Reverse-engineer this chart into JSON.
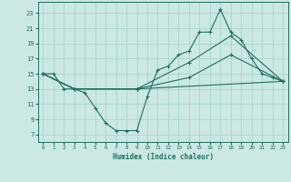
{
  "xlabel": "Humidex (Indice chaleur)",
  "ylabel": "",
  "bg_color": "#cce8e4",
  "line_color": "#1e6e60",
  "grid_color": "#a8d4cc",
  "xlim": [
    -0.5,
    23.5
  ],
  "ylim": [
    6,
    24.5
  ],
  "xticks": [
    0,
    1,
    2,
    3,
    4,
    5,
    6,
    7,
    8,
    9,
    10,
    11,
    12,
    13,
    14,
    15,
    16,
    17,
    18,
    19,
    20,
    21,
    22,
    23
  ],
  "yticks": [
    7,
    9,
    11,
    13,
    15,
    17,
    19,
    21,
    23
  ],
  "line1_x": [
    0,
    1,
    2,
    3,
    4,
    5,
    6,
    7,
    8,
    9,
    10,
    11,
    12,
    13,
    14,
    15,
    16,
    17,
    18,
    19,
    20,
    21,
    22,
    23
  ],
  "line1_y": [
    15,
    15,
    13,
    13,
    12.5,
    10.5,
    8.5,
    7.5,
    7.5,
    7.5,
    12.0,
    15.5,
    16.0,
    17.5,
    18.0,
    20.5,
    20.5,
    23.5,
    20.5,
    19.5,
    17.0,
    15.0,
    14.5,
    14.0
  ],
  "line2_x": [
    0,
    3,
    9,
    14,
    18,
    23
  ],
  "line2_y": [
    15,
    13,
    13,
    16.5,
    20.0,
    14.0
  ],
  "line3_x": [
    0,
    3,
    9,
    14,
    18,
    23
  ],
  "line3_y": [
    15,
    13,
    13,
    14.5,
    17.5,
    14.0
  ],
  "line4_x": [
    0,
    3,
    9,
    23
  ],
  "line4_y": [
    15,
    13,
    13,
    14.0
  ]
}
